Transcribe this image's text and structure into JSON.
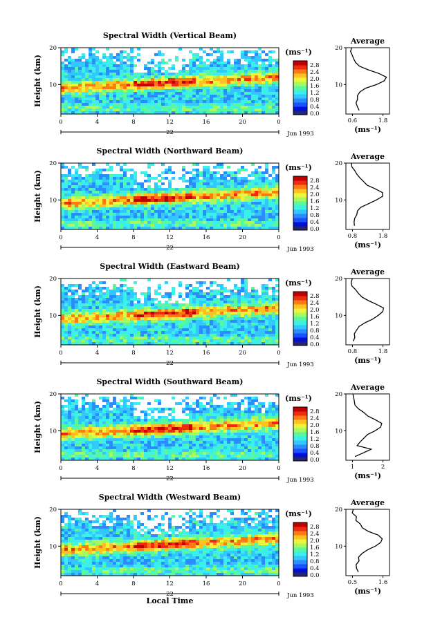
{
  "chart_data": [
    {
      "type": "heatmap",
      "title": "Spectral Width (Vertical Beam)",
      "xlabel": "",
      "ylabel": "Height (km)",
      "xlim": [
        0,
        24
      ],
      "ylim": [
        2,
        20
      ],
      "x_ticks": [
        "0",
        "4",
        "8",
        "12",
        "16",
        "20",
        "0"
      ],
      "y_ticks": [
        "20",
        "10"
      ],
      "day_label": "22",
      "date_label": "Jun 1993",
      "colorbar": {
        "unit": "(ms⁻¹)",
        "ticks": [
          "2.8",
          "2.4",
          "2.0",
          "1.6",
          "1.2",
          "0.8",
          "0.4",
          "0.0"
        ]
      },
      "profile": {
        "title": "Average",
        "xlabel": "(ms⁻¹)",
        "x_ticks": [
          "0.6",
          "1.8"
        ],
        "xlim": [
          0.4,
          2.0
        ],
        "y_ticks": [
          "20",
          "10"
        ],
        "points": [
          [
            0.85,
            3
          ],
          [
            0.8,
            4
          ],
          [
            0.75,
            5
          ],
          [
            0.8,
            6
          ],
          [
            0.85,
            7
          ],
          [
            0.9,
            8
          ],
          [
            1.1,
            9
          ],
          [
            1.5,
            10
          ],
          [
            1.8,
            11
          ],
          [
            1.85,
            12
          ],
          [
            1.6,
            13
          ],
          [
            1.2,
            14
          ],
          [
            0.9,
            15
          ],
          [
            0.75,
            16
          ],
          [
            0.7,
            17
          ],
          [
            0.65,
            18
          ],
          [
            0.6,
            19
          ],
          [
            0.6,
            20
          ]
        ]
      }
    },
    {
      "type": "heatmap",
      "title": "Spectral Width (Northward Beam)",
      "xlabel": "",
      "ylabel": "Height (km)",
      "xlim": [
        0,
        24
      ],
      "ylim": [
        2,
        20
      ],
      "x_ticks": [
        "0",
        "4",
        "8",
        "12",
        "16",
        "20",
        "0"
      ],
      "y_ticks": [
        "20",
        "10"
      ],
      "day_label": "22",
      "date_label": "Jun 1993",
      "colorbar": {
        "unit": "(ms⁻¹)",
        "ticks": [
          "2.8",
          "2.4",
          "2.0",
          "1.6",
          "1.2",
          "0.8",
          "0.4",
          "0.0"
        ]
      },
      "profile": {
        "title": "Average",
        "xlabel": "(ms⁻¹)",
        "x_ticks": [
          "0.8",
          "1.8"
        ],
        "xlim": [
          0.6,
          2.0
        ],
        "y_ticks": [
          "20",
          "10"
        ],
        "points": [
          [
            0.85,
            3
          ],
          [
            0.85,
            4
          ],
          [
            0.9,
            5
          ],
          [
            0.95,
            6
          ],
          [
            1.0,
            7
          ],
          [
            1.1,
            8
          ],
          [
            1.35,
            9
          ],
          [
            1.6,
            10
          ],
          [
            1.75,
            11
          ],
          [
            1.8,
            12
          ],
          [
            1.55,
            13
          ],
          [
            1.3,
            14
          ],
          [
            1.15,
            15
          ],
          [
            1.05,
            16
          ],
          [
            0.95,
            17
          ],
          [
            0.85,
            18
          ],
          [
            0.8,
            19
          ],
          [
            0.75,
            20
          ]
        ]
      }
    },
    {
      "type": "heatmap",
      "title": "Spectral Width (Eastward Beam)",
      "xlabel": "",
      "ylabel": "Height (km)",
      "xlim": [
        0,
        24
      ],
      "ylim": [
        2,
        20
      ],
      "x_ticks": [
        "0",
        "4",
        "8",
        "12",
        "16",
        "20",
        "0"
      ],
      "y_ticks": [
        "20",
        "10"
      ],
      "day_label": "22",
      "date_label": "Jun 1993",
      "colorbar": {
        "unit": "(ms⁻¹)",
        "ticks": [
          "2.8",
          "2.4",
          "2.0",
          "1.6",
          "1.2",
          "0.8",
          "0.4",
          "0.0"
        ]
      },
      "profile": {
        "title": "Average",
        "xlabel": "(ms⁻¹)",
        "x_ticks": [
          "0.8",
          "1.8"
        ],
        "xlim": [
          0.6,
          2.0
        ],
        "y_ticks": [
          "20",
          "10"
        ],
        "points": [
          [
            0.85,
            3
          ],
          [
            0.9,
            4
          ],
          [
            0.9,
            5
          ],
          [
            0.95,
            6
          ],
          [
            1.05,
            7
          ],
          [
            1.2,
            8
          ],
          [
            1.45,
            9
          ],
          [
            1.65,
            10
          ],
          [
            1.75,
            11
          ],
          [
            1.8,
            12
          ],
          [
            1.6,
            13
          ],
          [
            1.35,
            14
          ],
          [
            1.1,
            15
          ],
          [
            1.0,
            16
          ],
          [
            0.9,
            17
          ],
          [
            0.8,
            18
          ],
          [
            0.75,
            19
          ],
          [
            0.8,
            20
          ]
        ]
      }
    },
    {
      "type": "heatmap",
      "title": "Spectral Width (Southward Beam)",
      "xlabel": "",
      "ylabel": "Height (km)",
      "xlim": [
        0,
        24
      ],
      "ylim": [
        2,
        20
      ],
      "x_ticks": [
        "0",
        "4",
        "8",
        "12",
        "16",
        "20",
        "0"
      ],
      "y_ticks": [
        "20",
        "10"
      ],
      "day_label": "22",
      "date_label": "Jun 1993",
      "colorbar": {
        "unit": "(ms⁻¹)",
        "ticks": [
          "2.8",
          "2.4",
          "2.0",
          "1.6",
          "1.2",
          "0.8",
          "0.4",
          "0.0"
        ]
      },
      "profile": {
        "title": "Average",
        "xlabel": "(ms⁻¹)",
        "x_ticks": [
          "1",
          "2"
        ],
        "xlim": [
          0.6,
          2.4
        ],
        "y_ticks": [
          "20",
          "10"
        ],
        "points": [
          [
            1.0,
            3
          ],
          [
            1.3,
            4
          ],
          [
            1.6,
            5
          ],
          [
            1.1,
            6
          ],
          [
            1.15,
            7
          ],
          [
            1.3,
            8
          ],
          [
            1.5,
            9
          ],
          [
            1.8,
            10
          ],
          [
            2.0,
            11
          ],
          [
            2.1,
            12
          ],
          [
            1.8,
            13
          ],
          [
            1.5,
            14
          ],
          [
            1.3,
            15
          ],
          [
            1.15,
            16
          ],
          [
            1.0,
            17
          ],
          [
            0.95,
            18
          ],
          [
            0.9,
            19
          ],
          [
            0.85,
            20
          ]
        ]
      }
    },
    {
      "type": "heatmap",
      "title": "Spectral Width (Westward Beam)",
      "xlabel": "Local Time",
      "ylabel": "Height (km)",
      "xlim": [
        0,
        24
      ],
      "ylim": [
        2,
        20
      ],
      "x_ticks": [
        "0",
        "4",
        "8",
        "12",
        "16",
        "20",
        "0"
      ],
      "y_ticks": [
        "20",
        "10"
      ],
      "day_label": "22",
      "date_label": "Jun 1993",
      "colorbar": {
        "unit": "(ms⁻¹)",
        "ticks": [
          "2.8",
          "2.4",
          "2.0",
          "1.6",
          "1.2",
          "0.8",
          "0.4",
          "0.0"
        ]
      },
      "profile": {
        "title": "Average",
        "xlabel": "(ms⁻¹)",
        "x_ticks": [
          "0.5",
          "1.6"
        ],
        "xlim": [
          0.3,
          1.9
        ],
        "y_ticks": [
          "20",
          "10"
        ],
        "points": [
          [
            0.75,
            3
          ],
          [
            0.7,
            4
          ],
          [
            0.7,
            5
          ],
          [
            0.75,
            6
          ],
          [
            0.8,
            7
          ],
          [
            0.9,
            8
          ],
          [
            1.1,
            9
          ],
          [
            1.35,
            10
          ],
          [
            1.6,
            11
          ],
          [
            1.65,
            12
          ],
          [
            1.45,
            13
          ],
          [
            1.15,
            14
          ],
          [
            0.9,
            15
          ],
          [
            0.8,
            16
          ],
          [
            0.7,
            17
          ],
          [
            0.65,
            18
          ],
          [
            0.55,
            19
          ],
          [
            0.55,
            20
          ]
        ]
      }
    }
  ]
}
